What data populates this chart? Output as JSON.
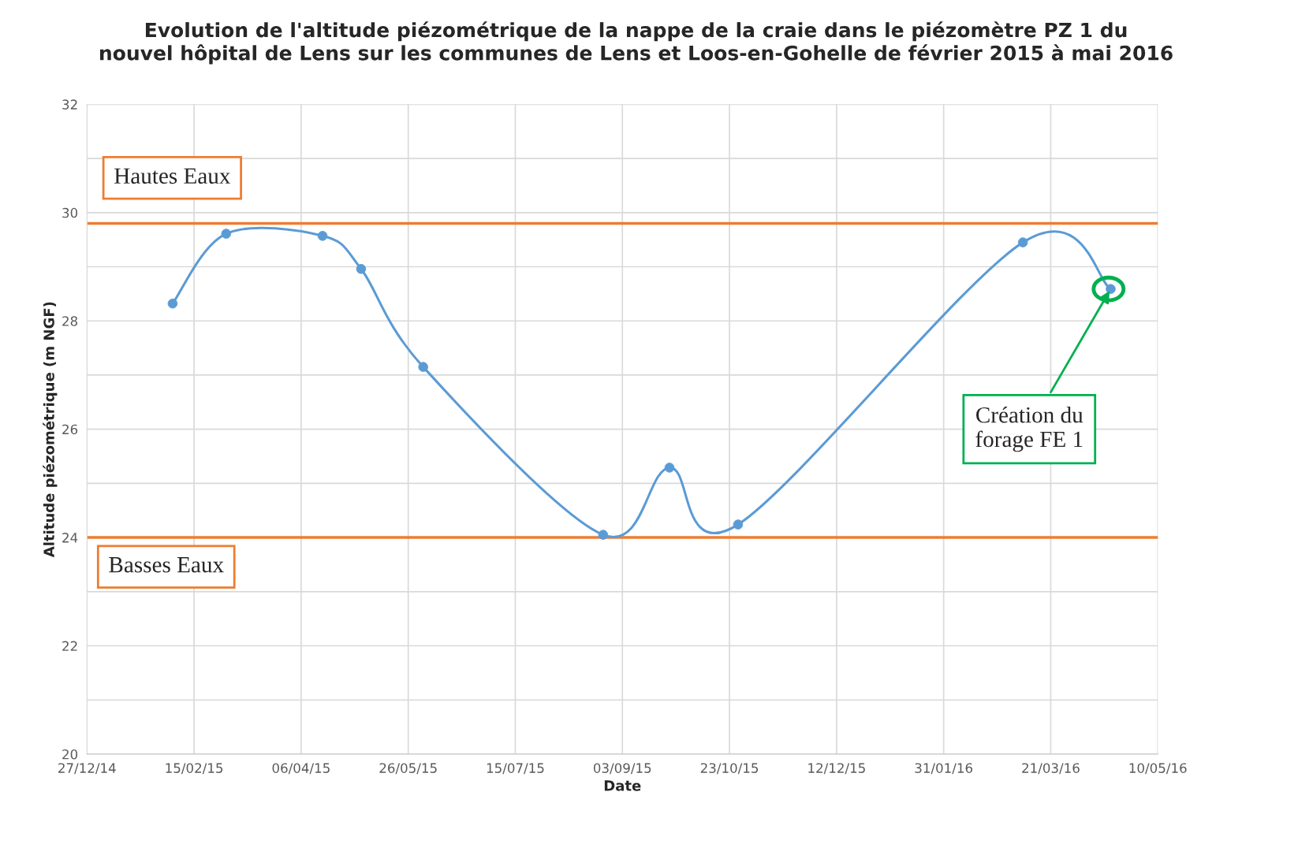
{
  "chart_data": {
    "type": "line",
    "title": "Evolution de l'altitude piézométrique de la nappe de la craie dans le piézomètre PZ 1 du nouvel hôpital de Lens sur les communes de Lens et Loos-en-Gohelle de février 2015 à mai 2016",
    "xlabel": "Date",
    "ylabel": "Altitude piézométrique (m NGF)",
    "x": [
      "2015-02-05",
      "2015-03-02",
      "2015-04-16",
      "2015-05-04",
      "2015-06-02",
      "2015-08-25",
      "2015-09-25",
      "2015-10-27",
      "2016-03-08",
      "2016-04-18"
    ],
    "series": [
      {
        "color": "#5b9bd5",
        "values": [
          28.32,
          29.61,
          29.57,
          28.96,
          27.15,
          24.05,
          25.29,
          24.24,
          29.45,
          28.59
        ]
      }
    ],
    "xlim": [
      "2014-12-27",
      "2016-05-10"
    ],
    "xticks": [
      {
        "value": "2014-12-27",
        "label": "27/12/14"
      },
      {
        "value": "2015-02-15",
        "label": "15/02/15"
      },
      {
        "value": "2015-04-06",
        "label": "06/04/15"
      },
      {
        "value": "2015-05-26",
        "label": "26/05/15"
      },
      {
        "value": "2015-07-15",
        "label": "15/07/15"
      },
      {
        "value": "2015-09-03",
        "label": "03/09/15"
      },
      {
        "value": "2015-10-23",
        "label": "23/10/15"
      },
      {
        "value": "2015-12-12",
        "label": "12/12/15"
      },
      {
        "value": "2016-01-31",
        "label": "31/01/16"
      },
      {
        "value": "2016-03-21",
        "label": "21/03/16"
      },
      {
        "value": "2016-05-10",
        "label": "10/05/16"
      }
    ],
    "ylim": [
      20,
      32
    ],
    "yticks": [
      20,
      {
        "value": 21,
        "label": null
      },
      22,
      {
        "value": 23,
        "label": null
      },
      24,
      {
        "value": 25,
        "label": null
      },
      26,
      {
        "value": 27,
        "label": null
      },
      28,
      {
        "value": 29,
        "label": null
      },
      30,
      {
        "value": 31,
        "label": null
      },
      32
    ],
    "grid": true,
    "marker": "circle",
    "line_style": "solid",
    "legend": false,
    "ref_lines": [
      {
        "axis": "y",
        "value": 29.8,
        "label": "Hautes Eaux",
        "color": "#ed7d31"
      },
      {
        "axis": "y",
        "value": 24,
        "label": "Basses Eaux",
        "color": "#ed7d31"
      }
    ],
    "annotations": [
      {
        "text": "Création du forage FE 1",
        "x": "2016-04-18",
        "y": 28.59
      }
    ]
  }
}
